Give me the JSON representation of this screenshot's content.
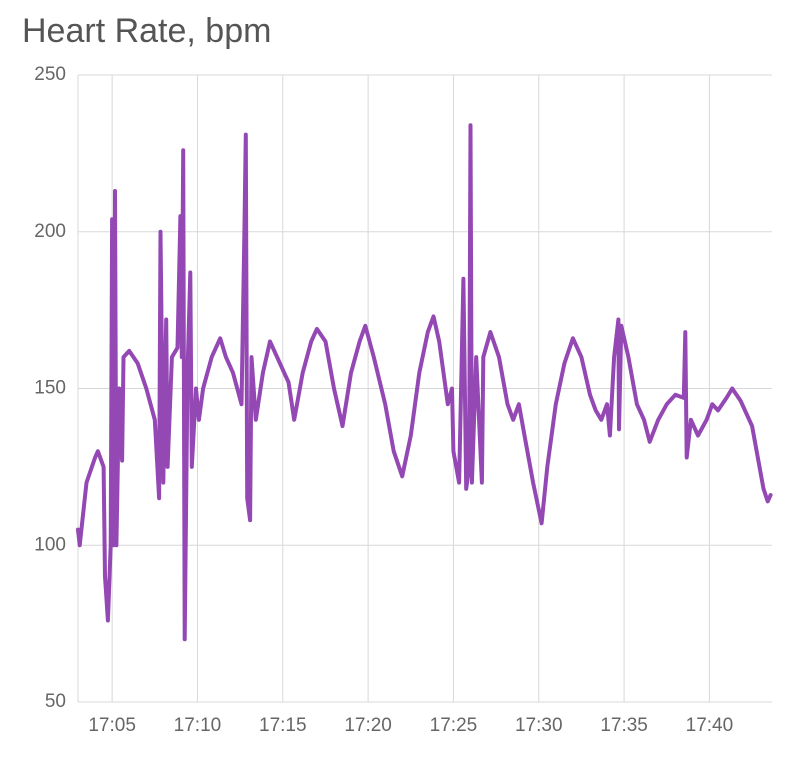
{
  "chart_data": {
    "type": "line",
    "title": "Heart Rate, bpm",
    "color": "#9448b4",
    "x": [
      "17:03:00",
      "17:03:06",
      "17:03:30",
      "17:04:00",
      "17:04:10",
      "17:04:30",
      "17:04:35",
      "17:04:45",
      "17:04:55",
      "17:05:00",
      "17:05:05",
      "17:05:10",
      "17:05:15",
      "17:05:25",
      "17:05:35",
      "17:05:40",
      "17:06:00",
      "17:06:30",
      "17:07:00",
      "17:07:30",
      "17:07:45",
      "17:07:50",
      "17:08:00",
      "17:08:10",
      "17:08:15",
      "17:08:30",
      "17:08:50",
      "17:09:00",
      "17:09:05",
      "17:09:10",
      "17:09:15",
      "17:09:25",
      "17:09:35",
      "17:09:40",
      "17:09:55",
      "17:10:05",
      "17:10:20",
      "17:10:50",
      "17:11:20",
      "17:11:40",
      "17:12:05",
      "17:12:35",
      "17:12:45",
      "17:12:50",
      "17:12:55",
      "17:13:05",
      "17:13:10",
      "17:13:25",
      "17:13:50",
      "17:14:15",
      "17:14:40",
      "17:15:05",
      "17:15:20",
      "17:15:40",
      "17:16:10",
      "17:16:40",
      "17:17:00",
      "17:17:30",
      "17:18:00",
      "17:18:30",
      "17:19:00",
      "17:19:30",
      "17:19:50",
      "17:20:20",
      "17:21:00",
      "17:21:30",
      "17:22:00",
      "17:22:30",
      "17:23:00",
      "17:23:30",
      "17:23:50",
      "17:24:10",
      "17:24:40",
      "17:24:55",
      "17:25:00",
      "17:25:20",
      "17:25:35",
      "17:25:45",
      "17:25:55",
      "17:26:00",
      "17:26:05",
      "17:26:20",
      "17:26:40",
      "17:26:45",
      "17:27:10",
      "17:27:40",
      "17:28:10",
      "17:28:30",
      "17:28:50",
      "17:29:10",
      "17:29:40",
      "17:30:10",
      "17:30:30",
      "17:31:00",
      "17:31:30",
      "17:32:00",
      "17:32:30",
      "17:33:00",
      "17:33:20",
      "17:33:40",
      "17:34:00",
      "17:34:10",
      "17:34:25",
      "17:34:40",
      "17:34:42",
      "17:34:50",
      "17:35:15",
      "17:35:45",
      "17:36:10",
      "17:36:30",
      "17:37:00",
      "17:37:30",
      "17:38:00",
      "17:38:30",
      "17:38:35",
      "17:38:40",
      "17:38:55",
      "17:39:20",
      "17:39:50",
      "17:40:10",
      "17:40:30",
      "17:41:00",
      "17:41:20",
      "17:41:50",
      "17:42:10",
      "17:42:30",
      "17:42:50",
      "17:43:10",
      "17:43:25",
      "17:43:35"
    ],
    "values": [
      105,
      100,
      120,
      128,
      130,
      125,
      90,
      76,
      100,
      204,
      100,
      213,
      100,
      150,
      127,
      160,
      162,
      158,
      150,
      140,
      115,
      200,
      120,
      172,
      125,
      160,
      163,
      205,
      160,
      226,
      70,
      155,
      187,
      125,
      150,
      140,
      150,
      160,
      166,
      160,
      155,
      145,
      200,
      231,
      115,
      108,
      160,
      140,
      155,
      165,
      160,
      155,
      152,
      140,
      155,
      165,
      169,
      165,
      150,
      138,
      155,
      165,
      170,
      160,
      145,
      130,
      122,
      135,
      155,
      168,
      173,
      165,
      145,
      150,
      130,
      120,
      185,
      118,
      125,
      234,
      120,
      160,
      120,
      160,
      168,
      160,
      145,
      140,
      145,
      135,
      120,
      107,
      125,
      145,
      158,
      166,
      160,
      148,
      143,
      140,
      145,
      135,
      160,
      172,
      137,
      170,
      160,
      145,
      140,
      133,
      140,
      145,
      148,
      147,
      168,
      128,
      140,
      135,
      140,
      145,
      143,
      147,
      150,
      146,
      142,
      138,
      128,
      118,
      114,
      116
    ],
    "xlim": [
      "17:03:00",
      "17:43:40"
    ],
    "xticks": [
      "17:05",
      "17:10",
      "17:15",
      "17:20",
      "17:25",
      "17:30",
      "17:35",
      "17:40"
    ],
    "ylim": [
      50,
      250
    ],
    "yticks": [
      50,
      100,
      150,
      200,
      250
    ],
    "grid": true
  }
}
